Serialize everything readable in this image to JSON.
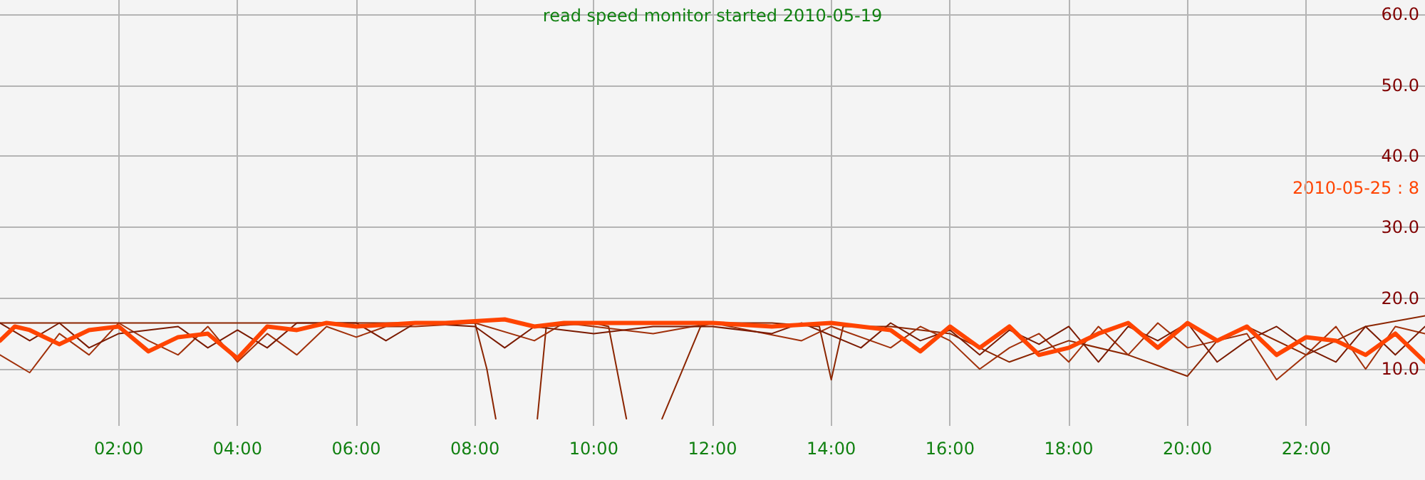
{
  "chart_data": {
    "type": "line",
    "title": "read speed monitor started 2010-05-19",
    "annotations": [
      "2010-05-25 : 8"
    ],
    "xlim": [
      0,
      24
    ],
    "ylim": [
      2,
      62
    ],
    "xticks": [
      {
        "value": 2,
        "label": "02:00"
      },
      {
        "value": 4,
        "label": "04:00"
      },
      {
        "value": 6,
        "label": "06:00"
      },
      {
        "value": 8,
        "label": "08:00"
      },
      {
        "value": 10,
        "label": "10:00"
      },
      {
        "value": 12,
        "label": "12:00"
      },
      {
        "value": 14,
        "label": "14:00"
      },
      {
        "value": 16,
        "label": "16:00"
      },
      {
        "value": 18,
        "label": "18:00"
      },
      {
        "value": 20,
        "label": "20:00"
      },
      {
        "value": 22,
        "label": "22:00"
      }
    ],
    "yticks": [
      {
        "value": 10,
        "label": "10.0"
      },
      {
        "value": 20,
        "label": "20.0"
      },
      {
        "value": 30,
        "label": "30.0"
      },
      {
        "value": 40,
        "label": "40.0"
      },
      {
        "value": 50,
        "label": "50.0"
      },
      {
        "value": 60,
        "label": "60.0"
      }
    ],
    "grid": true,
    "marker": "none",
    "line_style": "solid",
    "series": [
      {
        "color": "#8b2500",
        "x": [
          0,
          1,
          2,
          3,
          4,
          5,
          6,
          7,
          8,
          8.2,
          8.35,
          8.7,
          9.05,
          9.2,
          10,
          10.25,
          10.55,
          10.85,
          11.15,
          11.8,
          12,
          13,
          13.8,
          14,
          14.2,
          15,
          16,
          17,
          18,
          19,
          20,
          20.5,
          21,
          22,
          23,
          24
        ],
        "values": [
          16.5,
          16.5,
          16.5,
          16.5,
          16.5,
          16.5,
          16.5,
          16.5,
          16.5,
          10,
          3,
          null,
          3,
          16,
          16.5,
          16,
          3,
          null,
          3,
          16,
          16.5,
          16.5,
          16,
          8.5,
          16,
          16,
          15,
          11,
          14,
          12,
          9,
          14,
          16,
          12,
          16,
          17.5
        ]
      },
      {
        "color": "#a0300a",
        "x": [
          0,
          0.5,
          1,
          1.5,
          2,
          2.5,
          3,
          3.5,
          4,
          4.5,
          5,
          5.5,
          6,
          6.5,
          7,
          8,
          9,
          9.5,
          11,
          12,
          13.5,
          14,
          15,
          15.5,
          16,
          16.5,
          17,
          17.5,
          18,
          18.5,
          19,
          19.5,
          20,
          21,
          21.5,
          22,
          22.5,
          23,
          23.5,
          24
        ],
        "values": [
          12,
          9.5,
          15,
          12,
          16.5,
          14,
          12,
          16,
          11,
          15,
          12,
          16,
          14.5,
          16,
          16,
          16.5,
          14,
          16.5,
          15,
          16.5,
          14,
          16,
          13,
          16,
          14,
          10,
          13,
          15,
          11,
          16,
          12,
          16.5,
          13,
          15,
          8.5,
          12,
          16,
          10,
          16,
          15
        ]
      },
      {
        "color": "#7a1a00",
        "x": [
          0,
          0.5,
          1,
          1.5,
          2,
          3,
          3.5,
          4,
          4.5,
          5,
          6,
          6.5,
          7,
          8,
          8.5,
          9,
          10,
          11,
          12,
          13,
          13.5,
          14.5,
          15,
          15.5,
          16,
          16.5,
          17,
          17.5,
          18,
          18.5,
          19,
          19.5,
          20,
          20.5,
          21,
          21.5,
          22,
          22.5,
          23,
          23.5,
          24
        ],
        "values": [
          16.5,
          14,
          16.5,
          13,
          15,
          16,
          13,
          15.5,
          13,
          16.5,
          16.5,
          14,
          16.5,
          16,
          13,
          16,
          15,
          16,
          16,
          15,
          16.5,
          13,
          16.5,
          14,
          15.5,
          12,
          15.5,
          13.5,
          16,
          11,
          16,
          14,
          16.5,
          11,
          14,
          16,
          13,
          11,
          16,
          12,
          16
        ]
      },
      {
        "color": "#ff4400",
        "x": [
          0,
          0.25,
          0.5,
          1,
          1.5,
          2,
          2.5,
          3,
          3.5,
          4,
          4.5,
          5,
          5.5,
          6,
          7,
          7.5,
          8.5,
          9,
          9.5,
          10,
          11,
          12,
          13,
          14,
          14.5,
          15,
          15.5,
          16,
          16.5,
          17,
          17.5,
          18,
          18.5,
          19,
          19.5,
          20,
          20.5,
          21,
          21.5,
          22,
          22.5,
          23,
          23.5,
          24
        ],
        "values": [
          14,
          16,
          15.5,
          13.5,
          15.5,
          16,
          12.5,
          14.5,
          15,
          11.5,
          16,
          15.5,
          16.5,
          16,
          16.5,
          16.5,
          17,
          16,
          16.5,
          16.5,
          16.5,
          16.5,
          16,
          16.5,
          16,
          15.5,
          12.5,
          16,
          13,
          16,
          12,
          13,
          15,
          16.5,
          13,
          16.5,
          14,
          16,
          12,
          14.5,
          14,
          12,
          15,
          11
        ]
      }
    ]
  }
}
